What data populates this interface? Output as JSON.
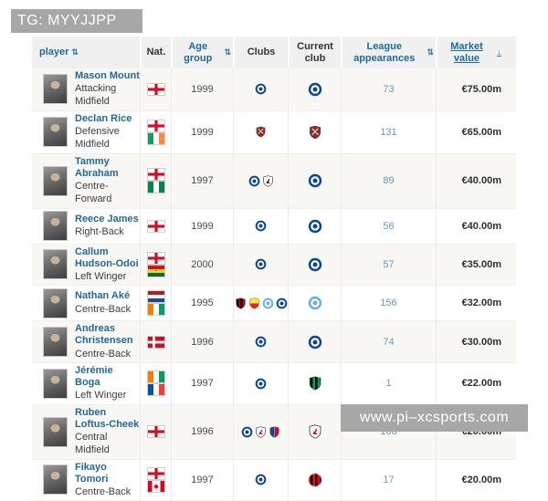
{
  "watermarks": {
    "top": "TG: MYYJJPP",
    "bottom": "www.pi–xcsports.com"
  },
  "colors": {
    "header_bg": "#f0f0f0",
    "header_link_blue": "#1d6b9b",
    "player_link_blue": "#226898",
    "appearances_blue": "#6598b8",
    "row_alt_bg": "#f8f7f4",
    "market_value_text": "#2e2e2e",
    "watermark_gray": "#a7a7a7"
  },
  "icons": {
    "sort_both": "⇅",
    "sort_desc": "↓",
    "flags": {
      "england": {
        "type": "cross",
        "bg": "#ffffff",
        "cross": "#ce1124"
      },
      "ireland": {
        "type": "v",
        "stripes": [
          "#169b62",
          "#ffffff",
          "#ff883e"
        ]
      },
      "nigeria": {
        "type": "v",
        "stripes": [
          "#008751",
          "#ffffff",
          "#008751"
        ]
      },
      "ghana": {
        "type": "h",
        "stripes": [
          "#ce1126",
          "#fcd116",
          "#006b3f"
        ],
        "star": "#000000"
      },
      "netherlands": {
        "type": "h",
        "stripes": [
          "#ae1c28",
          "#ffffff",
          "#21468b"
        ]
      },
      "ivory-coast": {
        "type": "v",
        "stripes": [
          "#f77f00",
          "#ffffff",
          "#009e60"
        ]
      },
      "denmark": {
        "type": "nordic",
        "bg": "#c8102e",
        "cross": "#ffffff"
      },
      "france": {
        "type": "v",
        "stripes": [
          "#0055a4",
          "#ffffff",
          "#ef4135"
        ]
      },
      "canada": {
        "type": "canada",
        "stripes": [
          "#d80621",
          "#ffffff",
          "#d80621"
        ],
        "leaf": "#d80621"
      }
    },
    "badges": {
      "chelsea": {
        "shape": "rings",
        "colors": [
          "#0b4596",
          "#ffffff",
          "#0b4596"
        ]
      },
      "west-ham": {
        "shape": "shield-x",
        "colors": [
          "#7b2b3a",
          "#ecc66b"
        ]
      },
      "swansea": {
        "shape": "shield-mark",
        "colors": [
          "#ffffff",
          "#111111"
        ]
      },
      "bournemouth": {
        "shape": "shield-vstripes",
        "colors": [
          "#b50e12",
          "#000000"
        ]
      },
      "watford": {
        "shape": "shield-hsplit",
        "colors": [
          "#fbee23",
          "#ed2127"
        ]
      },
      "man-city": {
        "shape": "rings",
        "colors": [
          "#6caddf",
          "#ffffff",
          "#6caddf"
        ]
      },
      "sassuolo": {
        "shape": "shield-vstripes",
        "colors": [
          "#00a752",
          "#000000"
        ]
      },
      "fulham": {
        "shape": "shield-mark",
        "colors": [
          "#ffffff",
          "#cc0000"
        ]
      },
      "crystal-palace": {
        "shape": "shield-vsplit",
        "colors": [
          "#1b458f",
          "#c4122e"
        ]
      },
      "milan": {
        "shape": "circle-vstripes",
        "colors": [
          "#fb090b",
          "#000000"
        ]
      }
    }
  },
  "table": {
    "headers": [
      {
        "label": "player",
        "sortable": true
      },
      {
        "label": "Nat.",
        "sortable": false
      },
      {
        "label": "Age group",
        "sortable": true
      },
      {
        "label": "Clubs",
        "sortable": false
      },
      {
        "label": "Current club",
        "sortable": false
      },
      {
        "label": "League appearances",
        "sortable": true
      },
      {
        "label": "Market value",
        "sortable": true,
        "sorted": "desc",
        "align": "right"
      }
    ],
    "rows": [
      {
        "name": "Mason Mount",
        "position": "Attacking Midfield",
        "nationalities": [
          "england"
        ],
        "age_group": "1999",
        "clubs": [
          "chelsea"
        ],
        "current_club": "chelsea",
        "league_appearances": "73",
        "market_value": "€75.00m"
      },
      {
        "name": "Declan Rice",
        "position": "Defensive Midfield",
        "nationalities": [
          "england",
          "ireland"
        ],
        "age_group": "1999",
        "clubs": [
          "west-ham"
        ],
        "current_club": "west-ham",
        "league_appearances": "131",
        "market_value": "€65.00m"
      },
      {
        "name": "Tammy Abraham",
        "position": "Centre-Forward",
        "nationalities": [
          "england",
          "nigeria"
        ],
        "age_group": "1997",
        "clubs": [
          "chelsea",
          "swansea"
        ],
        "current_club": "chelsea",
        "league_appearances": "89",
        "market_value": "€40.00m"
      },
      {
        "name": "Reece James",
        "position": "Right-Back",
        "nationalities": [
          "england"
        ],
        "age_group": "1999",
        "clubs": [
          "chelsea"
        ],
        "current_club": "chelsea",
        "league_appearances": "56",
        "market_value": "€40.00m"
      },
      {
        "name": "Callum Hudson-Odoi",
        "position": "Left Winger",
        "nationalities": [
          "england",
          "ghana"
        ],
        "age_group": "2000",
        "clubs": [
          "chelsea"
        ],
        "current_club": "chelsea",
        "league_appearances": "57",
        "market_value": "€35.00m"
      },
      {
        "name": "Nathan Aké",
        "position": "Centre-Back",
        "nationalities": [
          "netherlands",
          "ivory-coast"
        ],
        "age_group": "1995",
        "clubs": [
          "bournemouth",
          "watford",
          "man-city",
          "chelsea"
        ],
        "current_club": "man-city",
        "league_appearances": "156",
        "market_value": "€32.00m"
      },
      {
        "name": "Andreas Christensen",
        "position": "Centre-Back",
        "nationalities": [
          "denmark"
        ],
        "age_group": "1996",
        "clubs": [
          "chelsea"
        ],
        "current_club": "chelsea",
        "league_appearances": "74",
        "market_value": "€30.00m"
      },
      {
        "name": "Jérémie Boga",
        "position": "Left Winger",
        "nationalities": [
          "ivory-coast",
          "france"
        ],
        "age_group": "1997",
        "clubs": [
          "chelsea"
        ],
        "current_club": "sassuolo",
        "league_appearances": "1",
        "market_value": "€22.00m"
      },
      {
        "name": "Ruben Loftus-Cheek",
        "position": "Central Midfield",
        "nationalities": [
          "england"
        ],
        "age_group": "1996",
        "clubs": [
          "chelsea",
          "fulham",
          "crystal-palace"
        ],
        "current_club": "fulham",
        "league_appearances": "108",
        "market_value": "€20.00m"
      },
      {
        "name": "Fikayo Tomori",
        "position": "Centre-Back",
        "nationalities": [
          "england",
          "canada"
        ],
        "age_group": "1997",
        "clubs": [
          "chelsea"
        ],
        "current_club": "milan",
        "league_appearances": "17",
        "market_value": "€20.00m"
      }
    ]
  }
}
